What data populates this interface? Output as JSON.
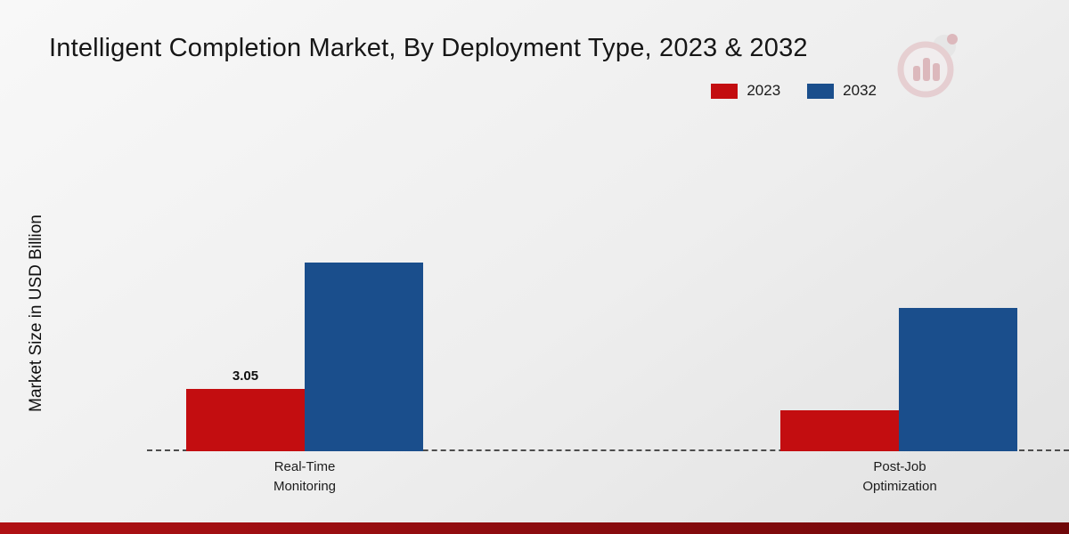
{
  "title": "Intelligent Completion Market, By Deployment Type, 2023 & 2032",
  "ylabel": "Market Size in USD Billion",
  "legend": [
    {
      "label": "2023",
      "color": "#c30d10"
    },
    {
      "label": "2032",
      "color": "#1a4e8c"
    }
  ],
  "chart_data": {
    "type": "bar",
    "title": "Intelligent Completion Market, By Deployment Type, 2023 & 2032",
    "xlabel": "",
    "ylabel": "Market Size in USD Billion",
    "categories": [
      "Real-Time Monitoring",
      "Post-Job Optimization"
    ],
    "series": [
      {
        "name": "2023",
        "color": "#c30d10",
        "values": [
          3.05,
          2.0
        ]
      },
      {
        "name": "2032",
        "color": "#1a4e8c",
        "values": [
          9.2,
          7.0
        ]
      }
    ],
    "data_labels": [
      {
        "category_index": 0,
        "series_index": 0,
        "text": "3.05"
      }
    ],
    "ylim": [
      0,
      10
    ],
    "grid": "off",
    "baseline_style": "dashed",
    "legend_position": "top-right"
  }
}
